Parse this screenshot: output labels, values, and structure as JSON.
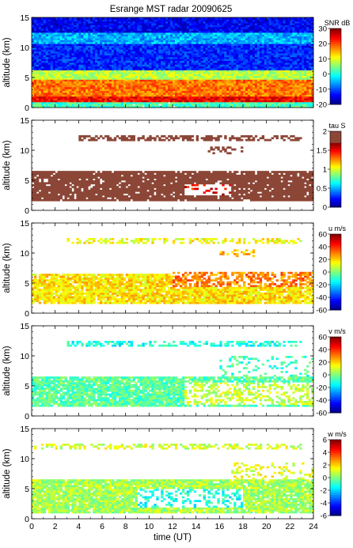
{
  "figure": {
    "title": "Esrange MST radar 20090625"
  },
  "chart_data": [
    {
      "type": "heatmap",
      "ylabel": "altitude (km)",
      "xlim": [
        0,
        24
      ],
      "ylim": [
        0,
        15
      ],
      "yticks": [
        0,
        5,
        10,
        15
      ],
      "colorbar": {
        "label": "SNR dB",
        "min": -20,
        "max": 30,
        "ticks": [
          -20,
          -10,
          0,
          10,
          20,
          30
        ]
      },
      "layers": [
        {
          "y0": 0.0,
          "y1": 0.9,
          "value": 2,
          "x0": 0,
          "x1": 24,
          "density": 0.98
        },
        {
          "y0": 0.9,
          "y1": 2.0,
          "value": 24,
          "x0": 0,
          "x1": 24,
          "density": 1.0
        },
        {
          "y0": 2.0,
          "y1": 4.8,
          "value": 18,
          "x0": 0,
          "x1": 24,
          "density": 1.0
        },
        {
          "y0": 4.8,
          "y1": 6.2,
          "value": 8,
          "x0": 0,
          "x1": 24,
          "density": 1.0
        },
        {
          "y0": 6.2,
          "y1": 10.5,
          "value": -12,
          "x0": 0,
          "x1": 24,
          "density": 1.0
        },
        {
          "y0": 10.5,
          "y1": 12.5,
          "value": -5,
          "x0": 0,
          "x1": 24,
          "density": 1.0
        },
        {
          "y0": 12.5,
          "y1": 15.0,
          "value": -14,
          "x0": 0,
          "x1": 24,
          "density": 1.0
        }
      ]
    },
    {
      "type": "heatmap",
      "ylabel": "altitude (km)",
      "xlim": [
        0,
        24
      ],
      "ylim": [
        0,
        15
      ],
      "yticks": [
        0,
        5,
        10,
        15
      ],
      "colorbar": {
        "label": "tau S",
        "min": 0,
        "max": 2,
        "ticks": [
          0,
          0.5,
          1,
          1.5,
          2
        ]
      },
      "layers": [
        {
          "y0": 1.5,
          "y1": 6.5,
          "value": 2.0,
          "x0": 0,
          "x1": 24,
          "density": 0.9
        },
        {
          "y0": 2.5,
          "y1": 4.5,
          "value": 1.5,
          "x0": 13,
          "x1": 17,
          "density": 0.2
        },
        {
          "y0": 11.6,
          "y1": 12.4,
          "value": 2.0,
          "x0": 4,
          "x1": 23,
          "density": 0.55
        },
        {
          "y0": 9.5,
          "y1": 10.5,
          "value": 2.0,
          "x0": 15,
          "x1": 18,
          "density": 0.3
        }
      ]
    },
    {
      "type": "heatmap",
      "ylabel": "altitude (km)",
      "xlim": [
        0,
        24
      ],
      "ylim": [
        0,
        15
      ],
      "yticks": [
        0,
        5,
        10,
        15
      ],
      "colorbar": {
        "label": "u m/s",
        "min": -60,
        "max": 60,
        "ticks": [
          -60,
          -40,
          -20,
          0,
          20,
          40,
          60
        ]
      },
      "layers": [
        {
          "y0": 1.5,
          "y1": 6.5,
          "value": 18,
          "x0": 0,
          "x1": 24,
          "density": 0.9
        },
        {
          "y0": 4.5,
          "y1": 7.0,
          "value": 30,
          "x0": 12,
          "x1": 24,
          "density": 0.6
        },
        {
          "y0": 11.6,
          "y1": 12.4,
          "value": 14,
          "x0": 3,
          "x1": 23,
          "density": 0.5
        },
        {
          "y0": 9.5,
          "y1": 10.5,
          "value": 22,
          "x0": 16,
          "x1": 19,
          "density": 0.3
        }
      ]
    },
    {
      "type": "heatmap",
      "ylabel": "altitude (km)",
      "xlim": [
        0,
        24
      ],
      "ylim": [
        0,
        15
      ],
      "yticks": [
        0,
        5,
        10,
        15
      ],
      "colorbar": {
        "label": "v m/s",
        "min": -60,
        "max": 60,
        "ticks": [
          -60,
          -40,
          -20,
          0,
          20,
          40,
          60
        ]
      },
      "layers": [
        {
          "y0": 1.5,
          "y1": 6.5,
          "value": -4,
          "x0": 0,
          "x1": 24,
          "density": 0.9
        },
        {
          "y0": 2.0,
          "y1": 5.5,
          "value": 8,
          "x0": 13,
          "x1": 24,
          "density": 0.4
        },
        {
          "y0": 11.6,
          "y1": 12.4,
          "value": -12,
          "x0": 3,
          "x1": 23,
          "density": 0.5
        },
        {
          "y0": 6.5,
          "y1": 10.0,
          "value": -8,
          "x0": 16,
          "x1": 24,
          "density": 0.2
        }
      ]
    },
    {
      "type": "heatmap",
      "ylabel": "altitude (km)",
      "xlabel": "time (UT)",
      "xlim": [
        0,
        24
      ],
      "ylim": [
        0,
        15
      ],
      "yticks": [
        0,
        5,
        10,
        15
      ],
      "xticks": [
        0,
        2,
        4,
        6,
        8,
        10,
        12,
        14,
        16,
        18,
        20,
        22,
        24
      ],
      "colorbar": {
        "label": "w m/s",
        "min": -6,
        "max": 6,
        "ticks": [
          -6,
          -4,
          -2,
          0,
          2,
          4,
          6
        ]
      },
      "layers": [
        {
          "y0": 0.8,
          "y1": 6.5,
          "value": 0.5,
          "x0": 0,
          "x1": 24,
          "density": 0.92
        },
        {
          "y0": 2.0,
          "y1": 5.0,
          "value": -1.2,
          "x0": 9,
          "x1": 18,
          "density": 0.35
        },
        {
          "y0": 11.6,
          "y1": 12.4,
          "value": 1.0,
          "x0": 0,
          "x1": 23,
          "density": 0.5
        },
        {
          "y0": 6.5,
          "y1": 9.5,
          "value": 1.2,
          "x0": 17,
          "x1": 24,
          "density": 0.25
        }
      ]
    }
  ]
}
